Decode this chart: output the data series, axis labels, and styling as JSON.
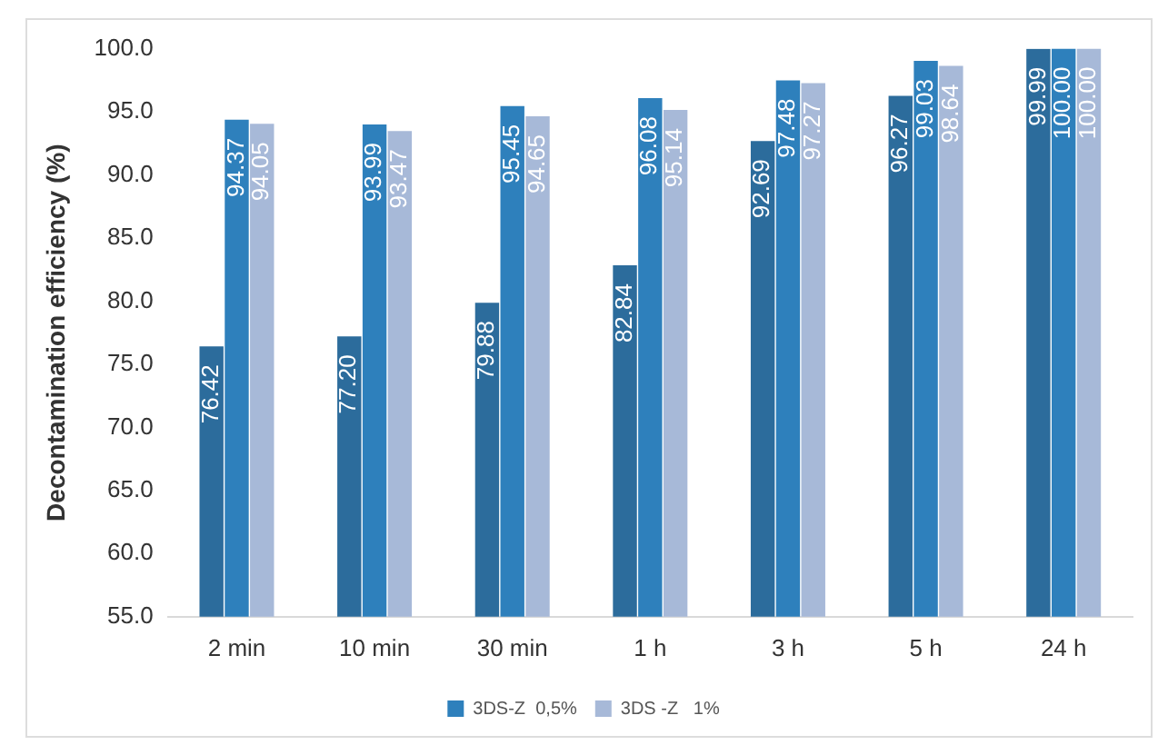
{
  "chart_data": {
    "type": "bar",
    "ylabel": "Decontamination efficiency (%)",
    "categories": [
      "2 min",
      "10 min",
      "30 min",
      "1 h",
      "3 h",
      "5 h",
      "24 h"
    ],
    "series": [
      {
        "color": "#2c6c9c",
        "values": [
          76.42,
          77.2,
          79.88,
          82.84,
          92.69,
          96.27,
          99.99
        ],
        "value_labels": [
          "76.42",
          "77.20",
          "79.88",
          "82.84",
          "92.69",
          "96.27",
          "99.99"
        ]
      },
      {
        "name": "3DS-Z  0,5%",
        "color": "#2e80bc",
        "values": [
          94.37,
          93.99,
          95.45,
          96.08,
          97.48,
          99.03,
          100.0
        ],
        "value_labels": [
          "94.37",
          "93.99",
          "95.45",
          "96.08",
          "97.48",
          "99.03",
          "100.00"
        ]
      },
      {
        "name": "3DS -Z   1%",
        "color": "#a7b9d8",
        "values": [
          94.05,
          93.47,
          94.65,
          95.14,
          97.27,
          98.64,
          100.0
        ],
        "value_labels": [
          "94.05",
          "93.47",
          "94.65",
          "95.14",
          "97.27",
          "98.64",
          "100.00"
        ]
      }
    ],
    "ylim": [
      55,
      100
    ],
    "yticks": [
      {
        "value": 55,
        "label": "55.0"
      },
      {
        "value": 60,
        "label": "60.0"
      },
      {
        "value": 65,
        "label": "65.0"
      },
      {
        "value": 70,
        "label": "70.0"
      },
      {
        "value": 75,
        "label": "75.0"
      },
      {
        "value": 80,
        "label": "80.0"
      },
      {
        "value": 85,
        "label": "85.0"
      },
      {
        "value": 90,
        "label": "90.0"
      },
      {
        "value": 95,
        "label": "95.0"
      },
      {
        "value": 100,
        "label": "100.0"
      }
    ],
    "legend": "bottom"
  }
}
